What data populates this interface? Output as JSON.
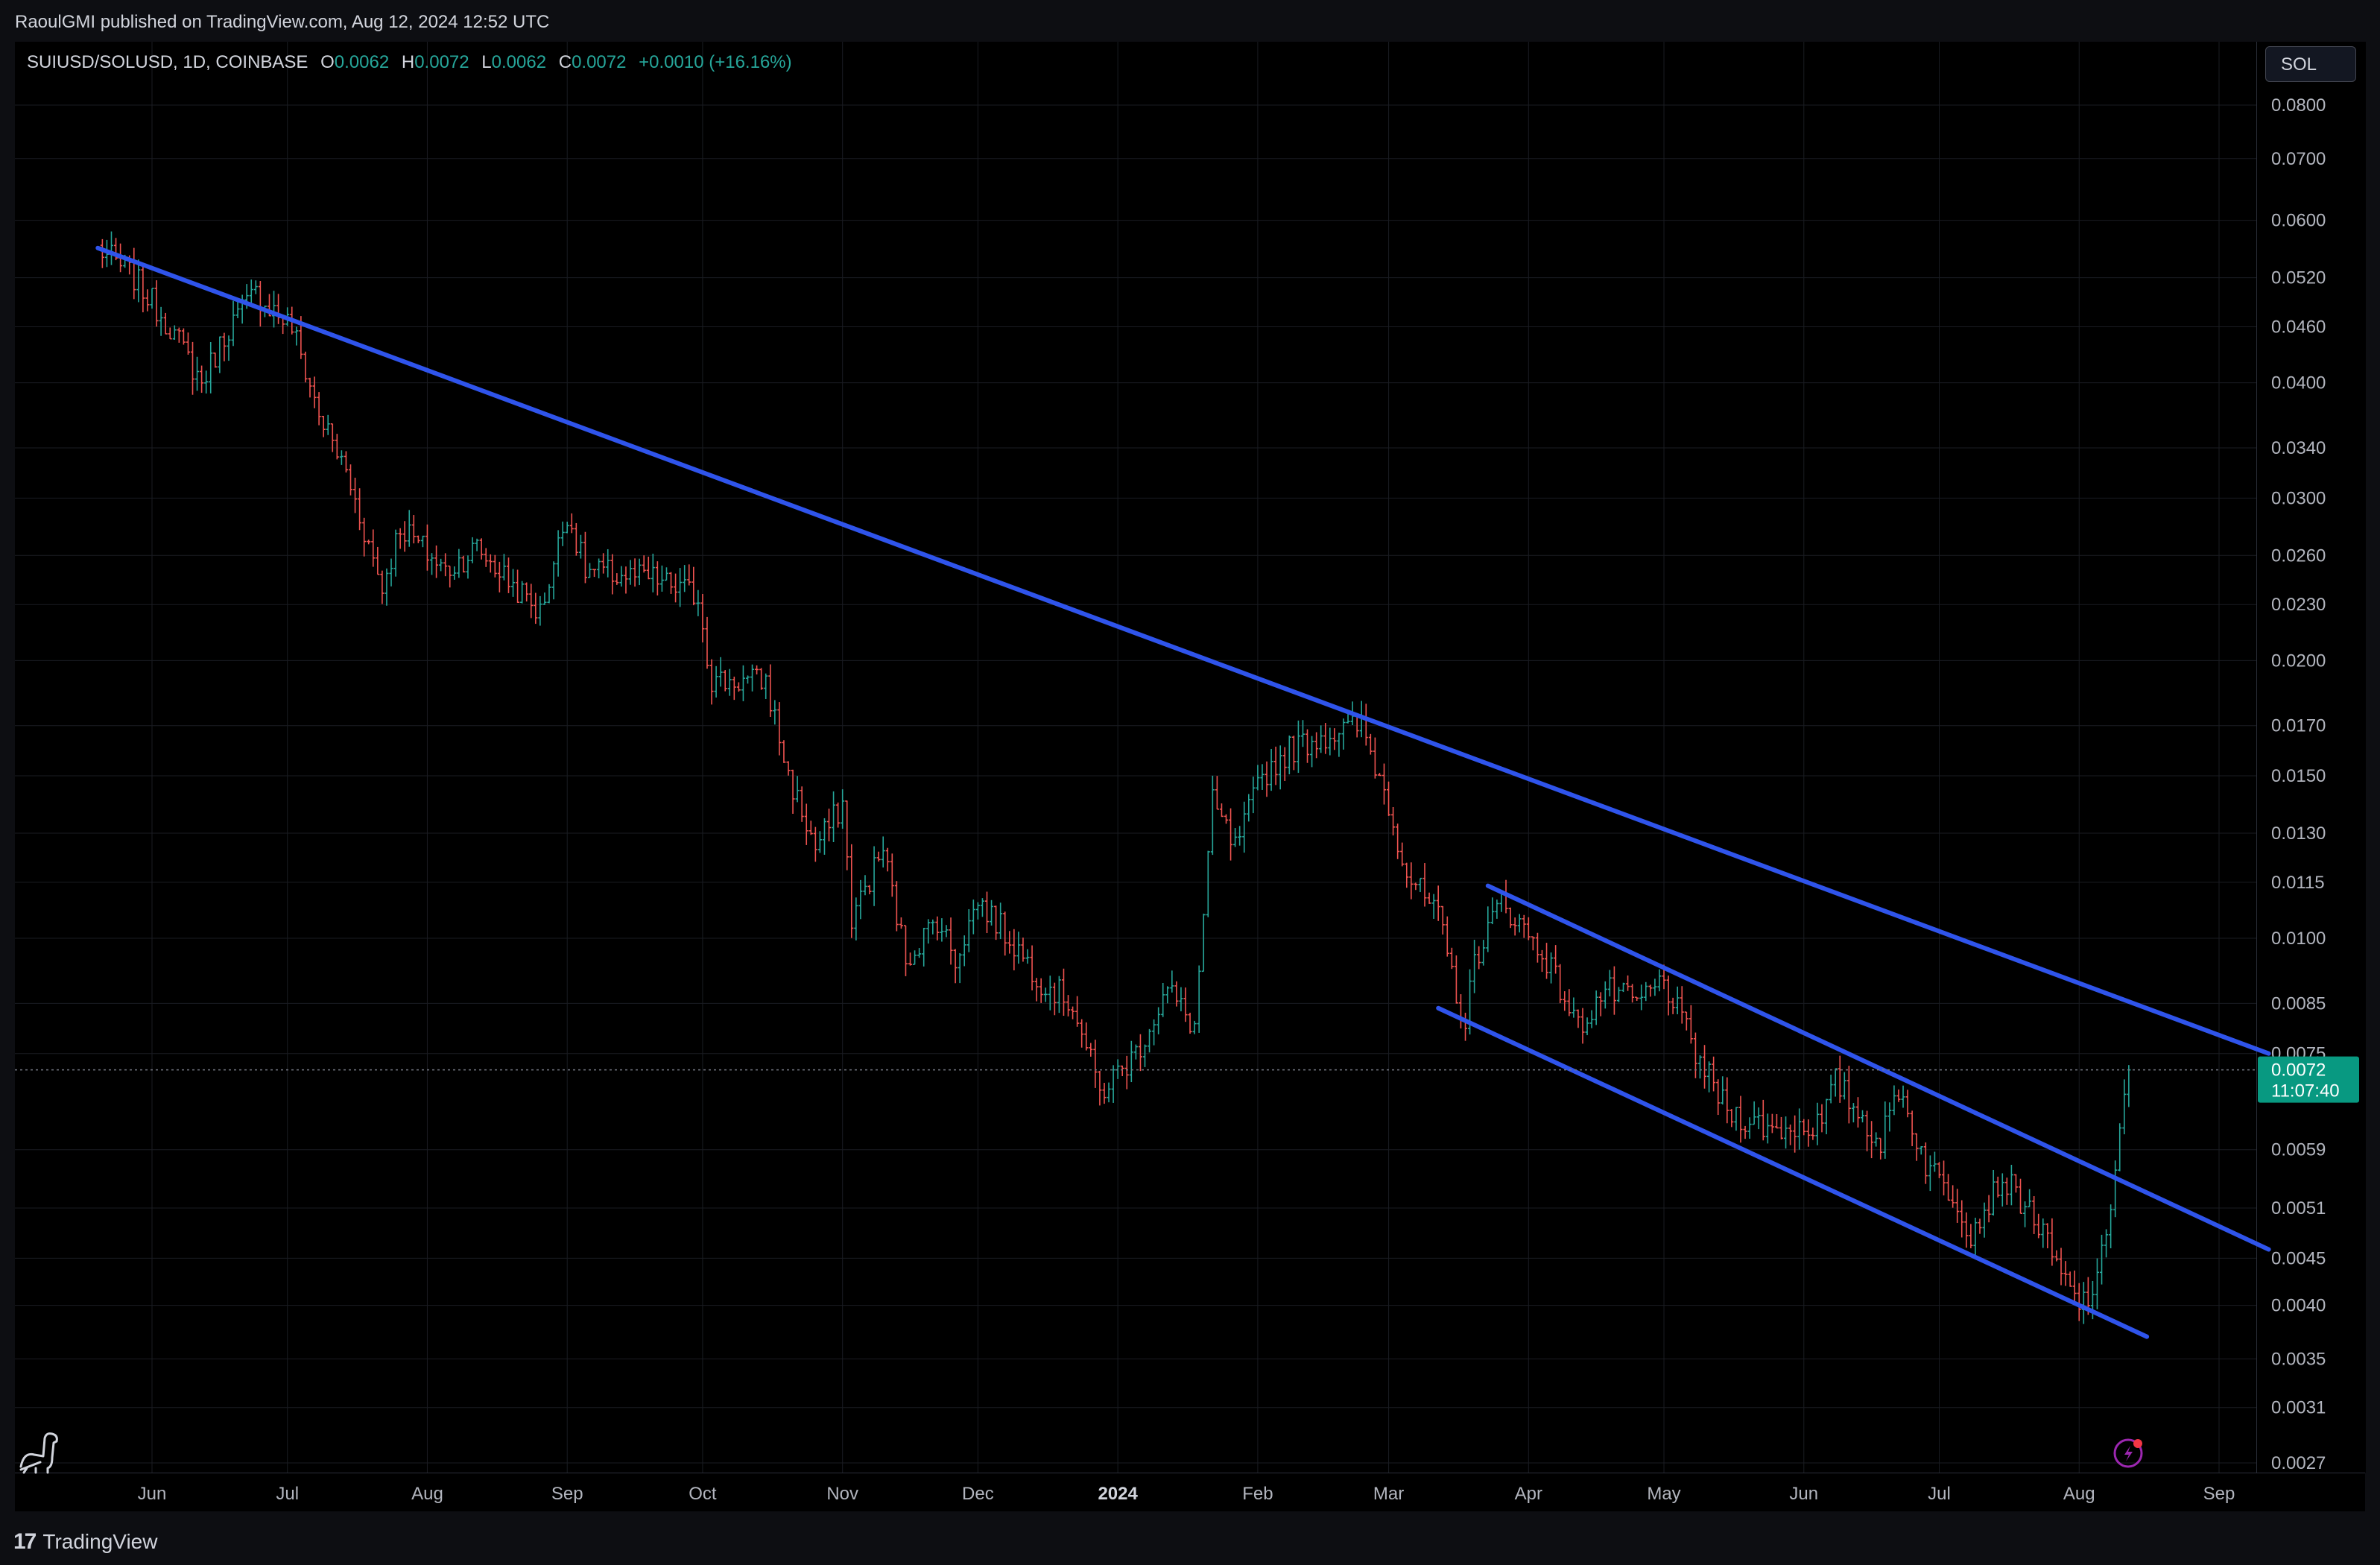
{
  "header": {
    "published": "RaoulGMI published on TradingView.com, Aug 12, 2024 12:52 UTC"
  },
  "legend": {
    "symbol": "SUIUSD/SOLUSD, 1D, COINBASE",
    "o_label": "O",
    "o_value": "0.0062",
    "h_label": "H",
    "h_value": "0.0072",
    "l_label": "L",
    "l_value": "0.0062",
    "c_label": "C",
    "c_value": "0.0072",
    "change": "+0.0010 (+16.16%)"
  },
  "quote_button": "SOL",
  "current_price": {
    "value": "0.0072",
    "countdown": "11:07:40"
  },
  "footer": {
    "brand": "TradingView"
  },
  "colors": {
    "up": "#26a69a",
    "down": "#ef5350",
    "trendline": "#2f54eb",
    "background": "#000000",
    "price_tag": "#089981"
  },
  "icons": {
    "bottom_left": "dino-icon",
    "bottom_right": "lightning-alert-icon",
    "brand": "tradingview-logo-icon"
  },
  "chart_data": {
    "type": "candlestick",
    "scale": "log",
    "series": [
      {
        "name": "SUIUSD/SOLUSD"
      }
    ],
    "x_ticks": [
      "Jun",
      "Jul",
      "Aug",
      "Sep",
      "Oct",
      "Nov",
      "Dec",
      "2024",
      "Feb",
      "Mar",
      "Apr",
      "May",
      "Jun",
      "Jul",
      "Aug",
      "Sep"
    ],
    "y_ticks": [
      "0.0800",
      "0.0700",
      "0.0600",
      "0.0520",
      "0.0460",
      "0.0400",
      "0.0340",
      "0.0300",
      "0.0260",
      "0.0230",
      "0.0200",
      "0.0170",
      "0.0150",
      "0.0130",
      "0.0115",
      "0.0100",
      "0.0085",
      "0.0075",
      "0.0059",
      "0.0051",
      "0.0045",
      "0.0040",
      "0.0035",
      "0.0031",
      "0.0027"
    ],
    "ylim": [
      0.0027,
      0.08
    ],
    "close_path": [
      [
        "2023-05-20",
        0.056
      ],
      [
        "2023-05-28",
        0.052
      ],
      [
        "2023-06-05",
        0.046
      ],
      [
        "2023-06-12",
        0.04
      ],
      [
        "2023-06-18",
        0.046
      ],
      [
        "2023-06-24",
        0.05
      ],
      [
        "2023-07-02",
        0.046
      ],
      [
        "2023-07-08",
        0.037
      ],
      [
        "2023-07-14",
        0.032
      ],
      [
        "2023-07-22",
        0.024
      ],
      [
        "2023-07-26",
        0.028
      ],
      [
        "2023-08-05",
        0.025
      ],
      [
        "2023-08-12",
        0.0265
      ],
      [
        "2023-08-26",
        0.0225
      ],
      [
        "2023-09-01",
        0.029
      ],
      [
        "2023-09-05",
        0.025
      ],
      [
        "2023-09-20",
        0.0245
      ],
      [
        "2023-09-30",
        0.0235
      ],
      [
        "2023-10-03",
        0.019
      ],
      [
        "2023-10-15",
        0.019
      ],
      [
        "2023-10-20",
        0.015
      ],
      [
        "2023-10-26",
        0.0125
      ],
      [
        "2023-11-01",
        0.014
      ],
      [
        "2023-11-03",
        0.0105
      ],
      [
        "2023-11-10",
        0.0125
      ],
      [
        "2023-11-15",
        0.0095
      ],
      [
        "2023-11-22",
        0.0105
      ],
      [
        "2023-11-26",
        0.0095
      ],
      [
        "2023-12-01",
        0.011
      ],
      [
        "2023-12-08",
        0.01
      ],
      [
        "2023-12-15",
        0.009
      ],
      [
        "2023-12-22",
        0.0085
      ],
      [
        "2023-12-28",
        0.0068
      ],
      [
        "2024-01-05",
        0.0075
      ],
      [
        "2024-01-12",
        0.0088
      ],
      [
        "2024-01-18",
        0.008
      ],
      [
        "2024-01-22",
        0.014
      ],
      [
        "2024-01-27",
        0.0125
      ],
      [
        "2024-02-02",
        0.015
      ],
      [
        "2024-02-08",
        0.016
      ],
      [
        "2024-02-14",
        0.0165
      ],
      [
        "2024-02-24",
        0.017
      ],
      [
        "2024-03-01",
        0.014
      ],
      [
        "2024-03-05",
        0.0118
      ],
      [
        "2024-03-12",
        0.0105
      ],
      [
        "2024-03-18",
        0.008
      ],
      [
        "2024-03-20",
        0.0095
      ],
      [
        "2024-03-26",
        0.011
      ],
      [
        "2024-04-05",
        0.0095
      ],
      [
        "2024-04-12",
        0.008
      ],
      [
        "2024-04-18",
        0.0088
      ],
      [
        "2024-04-25",
        0.0085
      ],
      [
        "2024-05-01",
        0.009
      ],
      [
        "2024-05-08",
        0.0075
      ],
      [
        "2024-05-15",
        0.0065
      ],
      [
        "2024-05-25",
        0.0062
      ],
      [
        "2024-06-05",
        0.0063
      ],
      [
        "2024-06-08",
        0.007
      ],
      [
        "2024-06-18",
        0.006
      ],
      [
        "2024-06-22",
        0.0069
      ],
      [
        "2024-06-28",
        0.0057
      ],
      [
        "2024-07-05",
        0.0052
      ],
      [
        "2024-07-08",
        0.0048
      ],
      [
        "2024-07-15",
        0.0055
      ],
      [
        "2024-07-22",
        0.005
      ],
      [
        "2024-07-28",
        0.0043
      ],
      [
        "2024-08-01",
        0.004
      ],
      [
        "2024-08-05",
        0.0042
      ],
      [
        "2024-08-08",
        0.0052
      ],
      [
        "2024-08-10",
        0.0062
      ],
      [
        "2024-08-12",
        0.0072
      ]
    ],
    "trendlines": [
      {
        "x1": "2023-05-20",
        "y1": 0.056,
        "x2": "2024-09-12",
        "y2": 0.0075
      },
      {
        "x1": "2024-03-23",
        "y1": 0.0114,
        "x2": "2024-09-12",
        "y2": 0.0046
      },
      {
        "x1": "2024-03-12",
        "y1": 0.0084,
        "x2": "2024-08-16",
        "y2": 0.0037
      }
    ]
  }
}
